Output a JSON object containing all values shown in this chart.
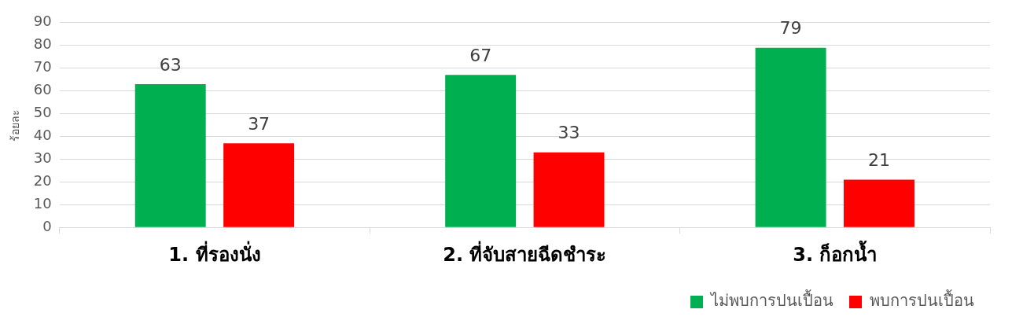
{
  "chart_data": {
    "type": "bar",
    "ylabel": "ร้อยละ",
    "categories": [
      "1. ที่รองนั่ง",
      "2. ที่จับสายฉีดชำระ",
      "3. ก็อกน้ำ"
    ],
    "series": [
      {
        "name": "ไม่พบการปนเปื้อน",
        "color": "#00b050",
        "values": [
          63,
          67,
          79
        ]
      },
      {
        "name": "พบการปนเปื้อน",
        "color": "#ff0000",
        "values": [
          37,
          33,
          21
        ]
      }
    ],
    "ylim": [
      0,
      90
    ],
    "yticks": [
      0,
      10,
      20,
      30,
      40,
      50,
      60,
      70,
      80,
      90
    ],
    "grid": "y",
    "legend": "bottom right",
    "data_labels": true
  }
}
